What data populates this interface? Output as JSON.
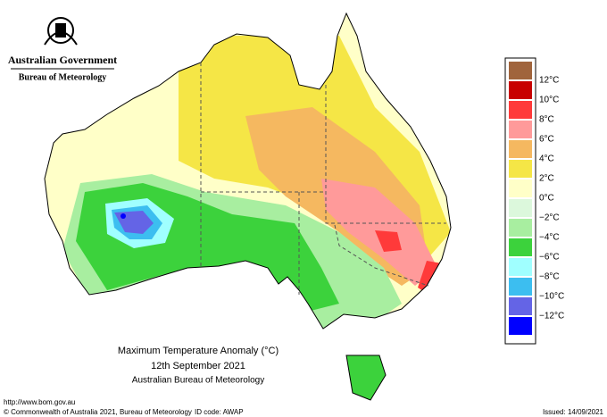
{
  "header": {
    "government": "Australian Government",
    "agency": "Bureau of Meteorology"
  },
  "map": {
    "title": "Maximum Temperature Anomaly (°C)",
    "date": "12th September 2021",
    "source": "Australian Bureau of Meteorology"
  },
  "legend": {
    "top_color": "#a0643c",
    "items": [
      {
        "label": "12°C",
        "color": "#c80000"
      },
      {
        "label": "10°C",
        "color": "#ff3a3a"
      },
      {
        "label": "8°C",
        "color": "#ff9a9a"
      },
      {
        "label": "6°C",
        "color": "#f5b860"
      },
      {
        "label": "4°C",
        "color": "#f5e646"
      },
      {
        "label": "2°C",
        "color": "#ffffc8"
      },
      {
        "label": "0°C",
        "color": "#dcf8dc"
      },
      {
        "label": "−2°C",
        "color": "#a8eea0"
      },
      {
        "label": "−4°C",
        "color": "#3cd23c"
      },
      {
        "label": "−6°C",
        "color": "#a0ffff"
      },
      {
        "label": "−8°C",
        "color": "#3cbef0"
      },
      {
        "label": "−10°C",
        "color": "#6464e6"
      },
      {
        "label": "−12°C",
        "color": "#0000ff"
      }
    ]
  },
  "footer": {
    "url": "http://www.bom.gov.au",
    "copyright": "© Commonwealth of Australia 2021, Bureau of Meteorology",
    "id_code": "ID code: AWAP",
    "issued": "Issued: 14/09/2021"
  }
}
